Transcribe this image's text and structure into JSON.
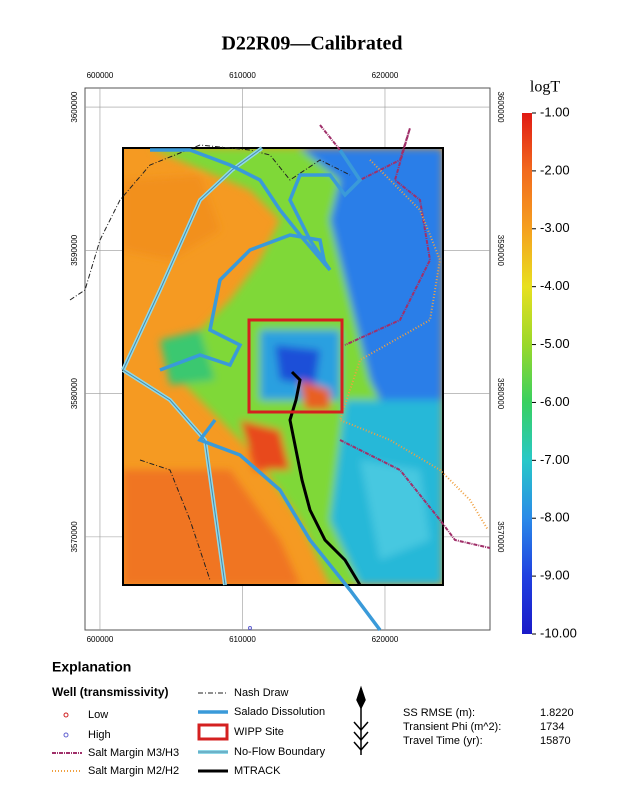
{
  "title": "D22R09—Calibrated",
  "map": {
    "xlim": [
      598950,
      627370
    ],
    "ylim": [
      3563500,
      3601330
    ],
    "xticks": [
      600000,
      610000,
      620000
    ],
    "yticks": [
      3570000,
      3580000,
      3590000,
      3600000
    ]
  },
  "colorbar": {
    "title": "logT",
    "lim": [
      -10,
      -1
    ],
    "colors": [
      "#e01a14",
      "#f26a1e",
      "#f5a020",
      "#e8e020",
      "#9ad82a",
      "#38d060",
      "#28c8c8",
      "#2a8ae8",
      "#2040e0",
      "#1a1ac8"
    ],
    "ticks": [
      {
        "value": -1,
        "label": "-1.00"
      },
      {
        "value": -2,
        "label": "-2.00"
      },
      {
        "value": -3,
        "label": "-3.00"
      },
      {
        "value": -4,
        "label": "-4.00"
      },
      {
        "value": -5,
        "label": "-5.00"
      },
      {
        "value": -6,
        "label": "-6.00"
      },
      {
        "value": -7,
        "label": "-7.00"
      },
      {
        "value": -8,
        "label": "-8.00"
      },
      {
        "value": -9,
        "label": "-9.00"
      },
      {
        "value": -10,
        "label": "-10.00"
      }
    ]
  },
  "explanation": {
    "title": "Explanation",
    "well_title": "Well (transmissivity)",
    "wells": [
      "Low",
      "High"
    ],
    "left_lines": [
      "Salt Margin M3/H3",
      "Salt Margin M2/H2"
    ],
    "right_lines": [
      "Nash Draw",
      "Salado Dissolution",
      "WIPP Site",
      "No-Flow Boundary",
      "MTRACK"
    ]
  },
  "stats": [
    {
      "label": "SS RMSE (m):",
      "value": "1.8220"
    },
    {
      "label": "Transient Phi (m^2):",
      "value": "1734"
    },
    {
      "label": "Travel Time (yr):",
      "value": "15870"
    }
  ]
}
